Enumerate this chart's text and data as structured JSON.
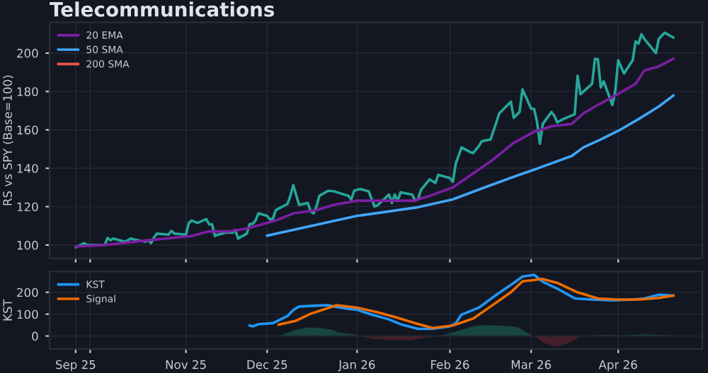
{
  "chart_data": [
    {
      "type": "line",
      "title": "Telecommunications",
      "ylabel": "RS vs SPY (Base=100)",
      "xlim": [
        "2025-09-17",
        "2026-04-30"
      ],
      "xticks": [
        {
          "value": "2025-09-26",
          "label": null
        },
        {
          "value": "2025-10-01",
          "label": null
        },
        {
          "value": "2025-11-03",
          "label": null
        },
        {
          "value": "2025-12-01",
          "label": null
        },
        {
          "value": "2026-01-01",
          "label": null
        },
        {
          "value": "2026-02-02",
          "label": null
        },
        {
          "value": "2026-03-02",
          "label": null
        },
        {
          "value": "2026-04-01",
          "label": null
        }
      ],
      "ylim": [
        93,
        216
      ],
      "yticks": [
        100,
        120,
        140,
        160,
        180,
        200
      ],
      "tick_labels": "y",
      "grid": true,
      "legend": "top left",
      "series": [
        {
          "color": "#26a69a",
          "x": [
            "2025-09-26",
            "2025-09-29",
            "2025-09-30",
            "2025-10-02",
            "2025-10-06",
            "2025-10-07",
            "2025-10-08",
            "2025-10-09",
            "2025-10-13",
            "2025-10-15",
            "2025-10-16",
            "2025-10-20",
            "2025-10-21",
            "2025-10-22",
            "2025-10-23",
            "2025-10-24",
            "2025-10-28",
            "2025-10-29",
            "2025-10-30",
            "2025-11-03",
            "2025-11-04",
            "2025-11-05",
            "2025-11-07",
            "2025-11-10",
            "2025-11-11",
            "2025-11-12",
            "2025-11-13",
            "2025-11-14",
            "2025-11-17",
            "2025-11-19",
            "2025-11-20",
            "2025-11-21",
            "2025-11-24",
            "2025-11-25",
            "2025-11-26",
            "2025-11-27",
            "2025-11-28",
            "2025-12-01",
            "2025-12-02",
            "2025-12-03",
            "2025-12-04",
            "2025-12-08",
            "2025-12-09",
            "2025-12-10",
            "2025-12-12",
            "2025-12-15",
            "2025-12-16",
            "2025-12-17",
            "2025-12-18",
            "2025-12-19",
            "2025-12-22",
            "2025-12-24",
            "2025-12-25",
            "2025-12-29",
            "2025-12-30",
            "2025-12-31",
            "2026-01-02",
            "2026-01-05",
            "2026-01-07",
            "2026-01-08",
            "2026-01-09",
            "2026-01-12",
            "2026-01-13",
            "2026-01-14",
            "2026-01-15",
            "2026-01-16",
            "2026-01-20",
            "2026-01-21",
            "2026-01-22",
            "2026-01-23",
            "2026-01-26",
            "2026-01-28",
            "2026-01-29",
            "2026-02-02",
            "2026-02-03",
            "2026-02-04",
            "2026-02-06",
            "2026-02-09",
            "2026-02-10",
            "2026-02-12",
            "2026-02-13",
            "2026-02-16",
            "2026-02-18",
            "2026-02-19",
            "2026-02-23",
            "2026-02-24",
            "2026-02-26",
            "2026-02-27",
            "2026-03-02",
            "2026-03-03",
            "2026-03-04",
            "2026-03-05",
            "2026-03-06",
            "2026-03-09",
            "2026-03-10",
            "2026-03-11",
            "2026-03-13",
            "2026-03-17",
            "2026-03-18",
            "2026-03-19",
            "2026-03-23",
            "2026-03-24",
            "2026-03-25",
            "2026-03-26",
            "2026-03-27",
            "2026-03-30",
            "2026-03-31",
            "2026-04-01",
            "2026-04-03",
            "2026-04-06",
            "2026-04-07",
            "2026-04-08",
            "2026-04-09",
            "2026-04-10",
            "2026-04-14",
            "2026-04-15",
            "2026-04-17",
            "2026-04-20"
          ],
          "values": [
            98.8,
            101,
            100,
            100,
            100,
            103.7,
            102.5,
            103.4,
            101.7,
            103.4,
            103,
            101.7,
            102.5,
            101,
            104,
            106,
            105.4,
            107.4,
            106,
            105.4,
            111.5,
            112.8,
            111.5,
            113.5,
            110.8,
            110.8,
            104.7,
            105.4,
            106.6,
            106.4,
            107.9,
            103.4,
            106,
            111,
            111,
            112.8,
            116.5,
            115.2,
            113.3,
            113.8,
            118.2,
            121.4,
            125.6,
            131.2,
            120.9,
            121.9,
            117.7,
            116.5,
            120.1,
            125.6,
            128.3,
            128,
            127.5,
            125.6,
            123.8,
            128.3,
            129.2,
            128,
            120.1,
            120.6,
            122.1,
            126.3,
            121.9,
            126.3,
            123.1,
            127.5,
            126.3,
            123.1,
            123.8,
            128.7,
            134.2,
            132.4,
            136.6,
            134.9,
            132.9,
            142.3,
            150.9,
            148.4,
            147.9,
            151.6,
            154.1,
            155,
            163.9,
            168.6,
            174.7,
            166.3,
            169.3,
            181.1,
            171,
            171,
            164.4,
            152.8,
            163.1,
            169.3,
            167.3,
            163.9,
            165.6,
            168.1,
            188.2,
            178.6,
            184,
            197,
            196.8,
            182.1,
            185.3,
            173,
            180.3,
            196.3,
            189.4,
            196.3,
            206.1,
            204.9,
            209.8,
            207.4,
            200,
            207.4,
            210.6,
            208.1
          ]
        },
        {
          "name": "20 EMA",
          "color": "#7b1fa2",
          "x": [
            "2025-09-26",
            "2025-10-06",
            "2025-10-21",
            "2025-11-05",
            "2025-11-11",
            "2025-11-18",
            "2025-11-24",
            "2025-11-28",
            "2025-12-04",
            "2025-12-10",
            "2025-12-18",
            "2025-12-24",
            "2026-01-01",
            "2026-01-12",
            "2026-01-21",
            "2026-01-22",
            "2026-01-26",
            "2026-02-03",
            "2026-02-10",
            "2026-02-17",
            "2026-02-24",
            "2026-03-03",
            "2026-03-09",
            "2026-03-16",
            "2026-03-20",
            "2026-03-25",
            "2026-03-31",
            "2026-04-07",
            "2026-04-10",
            "2026-04-15",
            "2026-04-20"
          ],
          "values": [
            99.3,
            100,
            102.5,
            104.7,
            107.1,
            107.1,
            108.6,
            110.3,
            112.8,
            116.5,
            118.2,
            120.9,
            123.1,
            123.1,
            123.1,
            123.8,
            125.6,
            130,
            137.3,
            144.7,
            153.3,
            159,
            161.9,
            163.1,
            168.6,
            173,
            177.9,
            184,
            190.9,
            193.1,
            197
          ]
        },
        {
          "name": "50 SMA",
          "color": "#42a5f5",
          "x": [
            "2025-12-01",
            "2026-01-01",
            "2026-01-22",
            "2026-02-03",
            "2026-02-13",
            "2026-02-25",
            "2026-03-04",
            "2026-03-16",
            "2026-03-20",
            "2026-03-26",
            "2026-04-01",
            "2026-04-08",
            "2026-04-15",
            "2026-04-20"
          ],
          "values": [
            104.9,
            115.2,
            119.7,
            123.8,
            129.5,
            136.1,
            139.8,
            146.4,
            150.9,
            155,
            159.5,
            165.6,
            172.2,
            177.9
          ]
        },
        {
          "name": "200 SMA",
          "color": "#ef5350"
        }
      ]
    },
    {
      "type": "line",
      "ylabel": "KST",
      "xlim": [
        "2025-09-17",
        "2026-04-30"
      ],
      "xticks": [
        {
          "value": "2025-09-26",
          "label": "Sep 25"
        },
        {
          "value": "2025-10-01",
          "label": null
        },
        {
          "value": "2025-11-03",
          "label": "Nov 25"
        },
        {
          "value": "2025-12-01",
          "label": "Dec 25"
        },
        {
          "value": "2026-01-01",
          "label": "Jan 26"
        },
        {
          "value": "2026-02-02",
          "label": "Feb 26"
        },
        {
          "value": "2026-03-02",
          "label": "Mar 26"
        },
        {
          "value": "2026-04-01",
          "label": "Apr 26"
        }
      ],
      "ylim": [
        -60,
        295
      ],
      "yticks": [
        0,
        100,
        200
      ],
      "grid": true,
      "legend": "top left",
      "series": [
        {
          "name": "KST",
          "color": "#2196f3",
          "x": [
            "2025-11-25",
            "2025-11-26",
            "2025-11-28",
            "2025-12-03",
            "2025-12-08",
            "2025-12-10",
            "2025-12-12",
            "2025-12-18",
            "2025-12-22",
            "2025-12-24",
            "2025-12-29",
            "2026-01-01",
            "2026-01-06",
            "2026-01-12",
            "2026-01-16",
            "2026-01-22",
            "2026-01-27",
            "2026-02-02",
            "2026-02-04",
            "2026-02-06",
            "2026-02-12",
            "2026-02-18",
            "2026-02-24",
            "2026-02-27",
            "2026-03-03",
            "2026-03-06",
            "2026-03-11",
            "2026-03-17",
            "2026-03-23",
            "2026-03-30",
            "2026-04-06",
            "2026-04-10",
            "2026-04-15",
            "2026-04-20"
          ],
          "values": [
            48,
            44,
            54,
            59,
            91,
            119,
            135,
            139,
            141,
            135,
            124,
            120,
            98,
            76,
            54,
            33,
            33,
            44,
            59,
            98,
            130,
            189,
            243,
            272,
            280,
            248,
            217,
            172,
            167,
            163,
            167,
            172,
            189,
            185
          ]
        },
        {
          "name": "Signal",
          "color": "#ef6c00",
          "x": [
            "2025-12-05",
            "2025-12-11",
            "2025-12-16",
            "2025-12-22",
            "2025-12-25",
            "2026-01-01",
            "2026-01-08",
            "2026-01-14",
            "2026-01-21",
            "2026-01-27",
            "2026-02-03",
            "2026-02-10",
            "2026-02-16",
            "2026-02-23",
            "2026-02-27",
            "2026-03-06",
            "2026-03-11",
            "2026-03-18",
            "2026-03-25",
            "2026-04-01",
            "2026-04-08",
            "2026-04-15",
            "2026-04-20"
          ],
          "values": [
            52,
            70,
            102,
            128,
            141,
            130,
            109,
            87,
            59,
            37,
            48,
            80,
            135,
            200,
            250,
            261,
            243,
            200,
            172,
            167,
            167,
            174,
            185
          ]
        },
        {
          "type": "area",
          "color": "#1b4a42",
          "x": [
            "2025-12-05",
            "2025-12-10",
            "2025-12-15",
            "2025-12-18",
            "2025-12-23",
            "2025-12-26",
            "2025-12-31",
            "2026-01-02",
            "2026-01-15",
            "2026-01-29",
            "2026-02-04",
            "2026-02-10",
            "2026-02-13",
            "2026-02-19",
            "2026-02-25",
            "2026-03-03",
            "2026-03-11",
            "2026-03-19",
            "2026-03-27",
            "2026-04-03",
            "2026-04-10",
            "2026-04-20"
          ],
          "values": [
            0,
            25,
            40,
            38,
            30,
            15,
            8,
            0,
            null,
            0,
            20,
            45,
            50,
            48,
            42,
            0,
            null,
            0,
            5,
            3,
            8,
            3
          ]
        },
        {
          "type": "area",
          "color": "#4a1f2a",
          "x": [
            "2026-01-02",
            "2026-01-07",
            "2026-01-13",
            "2026-01-19",
            "2026-01-23",
            "2026-01-29",
            "2026-02-13",
            "2026-03-03",
            "2026-03-06",
            "2026-03-11",
            "2026-03-16",
            "2026-03-19"
          ],
          "values": [
            0,
            -15,
            -18,
            -20,
            -12,
            0,
            null,
            0,
            -30,
            -50,
            -25,
            0
          ]
        }
      ]
    }
  ]
}
